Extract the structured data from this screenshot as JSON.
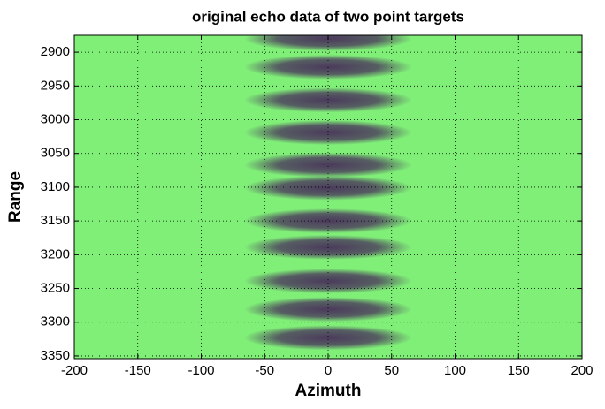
{
  "chart_data": {
    "type": "image",
    "title": "original echo data of two point targets",
    "xlabel": "Azimuth",
    "ylabel": "Range",
    "xlim": [
      -200,
      200
    ],
    "ylim": [
      2875,
      3354
    ],
    "y_reversed": true,
    "xticks": [
      -200,
      -150,
      -100,
      -50,
      0,
      50,
      100,
      150,
      200
    ],
    "yticks": [
      2900,
      2950,
      3000,
      3050,
      3100,
      3150,
      3200,
      3250,
      3300,
      3350
    ],
    "grid": true,
    "background": "#80ef78",
    "color": "#4b3a5c",
    "x": [
      0,
      0,
      0,
      0,
      0,
      0,
      0,
      0,
      0,
      0,
      0
    ],
    "y": [
      2880,
      2922,
      2971,
      3019,
      3067,
      3101,
      3150,
      3189,
      3239,
      3281,
      3323
    ]
  }
}
